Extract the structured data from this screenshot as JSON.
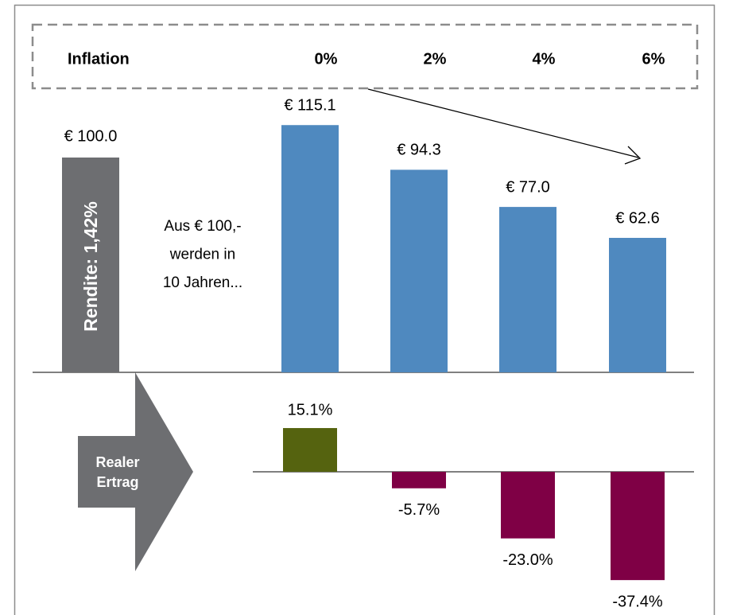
{
  "chart_data": [
    {
      "type": "bar",
      "header": "Inflation",
      "categories": [
        "0%",
        "2%",
        "4%",
        "6%"
      ],
      "start": {
        "value": 100.0,
        "value_label": "€ 100.0",
        "label": "Rendite: 1,42%",
        "color": "#6d6e71"
      },
      "note": [
        "Aus € 100,-",
        "werden in",
        "10 Jahren..."
      ],
      "values": [
        115.1,
        94.3,
        77.0,
        62.6
      ],
      "value_labels": [
        "€ 115.1",
        "€ 94.3",
        "€ 77.0",
        "€ 62.6"
      ],
      "color": "#4f89bf"
    },
    {
      "type": "bar",
      "label": [
        "Realer",
        "Ertrag"
      ],
      "values": [
        15.1,
        -5.7,
        -23.0,
        -37.4
      ],
      "value_labels": [
        "15.1%",
        "-5.7%",
        "-23.0%",
        "-37.4%"
      ],
      "colors": [
        "#55630f",
        "#7f0045",
        "#7f0045",
        "#7f0045"
      ]
    }
  ]
}
